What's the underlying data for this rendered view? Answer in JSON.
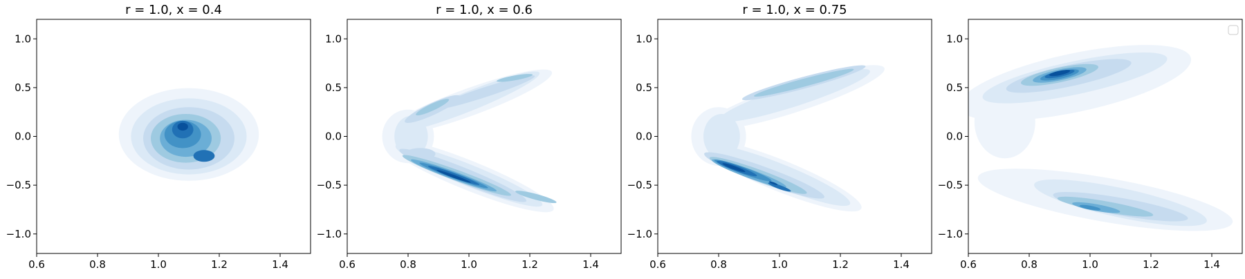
{
  "figure": {
    "panels": [
      {
        "title": "r = 1.0, x = 0.4"
      },
      {
        "title": "r = 1.0, x = 0.6"
      },
      {
        "title": "r = 1.0, x = 0.75"
      },
      {
        "title": ""
      }
    ]
  },
  "chart_data": [
    {
      "type": "heatmap",
      "subtype": "kde-filled-contour",
      "title": "r = 1.0, x = 0.4",
      "xlabel": "",
      "ylabel": "",
      "xlim": [
        0.6,
        1.5
      ],
      "ylim": [
        -1.2,
        1.2
      ],
      "xticks": [
        0.6,
        0.8,
        1.0,
        1.2,
        1.4
      ],
      "yticks": [
        -1.0,
        -0.5,
        0.0,
        0.5,
        1.0
      ],
      "colormap": "Blues",
      "density_peaks": [
        {
          "x": 1.08,
          "y": 0.1,
          "level": 1.0
        },
        {
          "x": 1.05,
          "y": -0.05,
          "level": 0.9
        },
        {
          "x": 1.15,
          "y": -0.2,
          "level": 0.8
        }
      ]
    },
    {
      "type": "heatmap",
      "subtype": "kde-filled-contour",
      "title": "r = 1.0, x = 0.6",
      "xlabel": "",
      "ylabel": "",
      "xlim": [
        0.6,
        1.5
      ],
      "ylim": [
        -1.2,
        1.2
      ],
      "xticks": [
        0.6,
        0.8,
        1.0,
        1.2,
        1.4
      ],
      "yticks": [
        -1.0,
        -0.5,
        0.0,
        0.5,
        1.0
      ],
      "colormap": "Blues",
      "density_peaks": [
        {
          "x": 0.95,
          "y": -0.4,
          "level": 1.0
        },
        {
          "x": 1.15,
          "y": 0.6,
          "level": 0.5
        },
        {
          "x": 1.22,
          "y": -0.62,
          "level": 0.45
        }
      ]
    },
    {
      "type": "heatmap",
      "subtype": "kde-filled-contour",
      "title": "r = 1.0, x = 0.75",
      "xlabel": "",
      "ylabel": "",
      "xlim": [
        0.6,
        1.5
      ],
      "ylim": [
        -1.2,
        1.2
      ],
      "xticks": [
        0.6,
        0.8,
        1.0,
        1.2,
        1.4
      ],
      "yticks": [
        -1.0,
        -0.5,
        0.0,
        0.5,
        1.0
      ],
      "colormap": "Blues",
      "density_peaks": [
        {
          "x": 0.85,
          "y": -0.32,
          "level": 1.0
        },
        {
          "x": 1.0,
          "y": -0.52,
          "level": 0.85
        },
        {
          "x": 1.15,
          "y": 0.68,
          "level": 0.35
        }
      ]
    },
    {
      "type": "heatmap",
      "subtype": "kde-filled-contour",
      "title": "",
      "xlabel": "",
      "ylabel": "",
      "xlim": [
        0.6,
        1.5
      ],
      "ylim": [
        -1.2,
        1.2
      ],
      "xticks": [
        0.6,
        0.8,
        1.0,
        1.2,
        1.4
      ],
      "yticks": [
        -1.0,
        -0.5,
        0.0,
        0.5,
        1.0
      ],
      "colormap": "Blues",
      "legend": "top-right (empty)",
      "density_peaks": [
        {
          "x": 0.9,
          "y": 0.63,
          "level": 1.0
        },
        {
          "x": 1.0,
          "y": -0.72,
          "level": 0.7
        },
        {
          "x": 0.65,
          "y": 0.15,
          "level": 0.15
        }
      ]
    }
  ],
  "colors": {
    "levels": [
      "#eef4fb",
      "#dbe9f6",
      "#c6dbef",
      "#9ecae1",
      "#6baed6",
      "#4292c6",
      "#2171b5",
      "#08519c"
    ]
  }
}
